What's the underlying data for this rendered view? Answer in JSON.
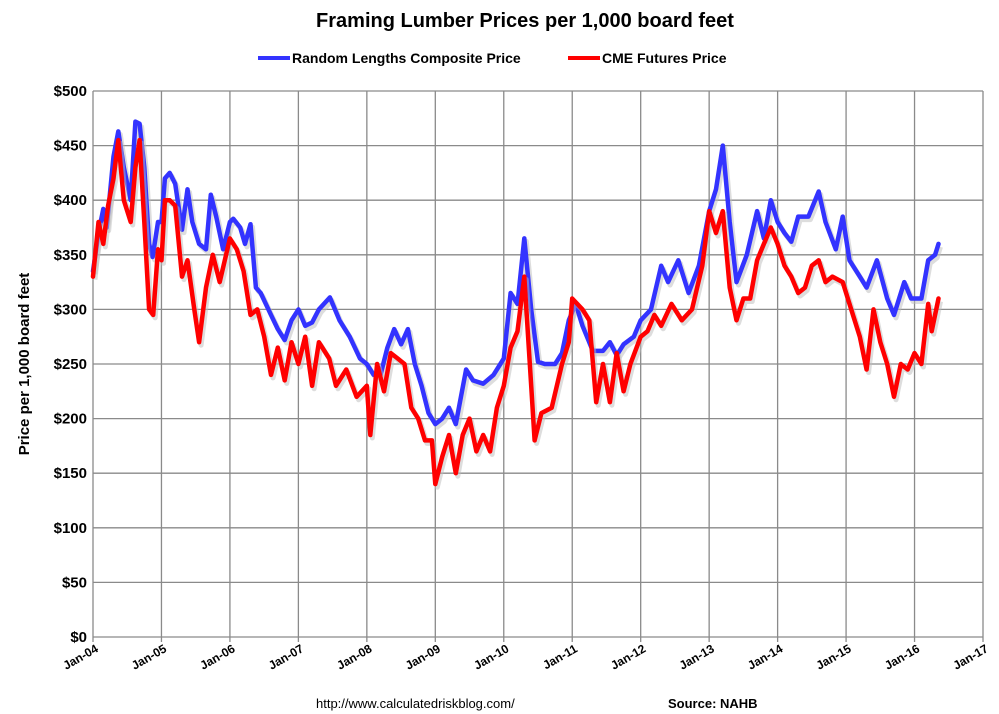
{
  "chart_data": {
    "type": "line",
    "title": "Framing Lumber Prices per 1,000 board feet",
    "xlabel": "",
    "ylabel": "Price per 1,000 board feet",
    "ylim": [
      0,
      500
    ],
    "xlim": [
      "Jan-04",
      "Jan-17"
    ],
    "yticks": [
      "$0",
      "$50",
      "$100",
      "$150",
      "$200",
      "$250",
      "$300",
      "$350",
      "$400",
      "$450",
      "$500"
    ],
    "xticks": [
      "Jan-04",
      "Jan-05",
      "Jan-06",
      "Jan-07",
      "Jan-08",
      "Jan-09",
      "Jan-10",
      "Jan-11",
      "Jan-12",
      "Jan-13",
      "Jan-14",
      "Jan-15",
      "Jan-16",
      "Jan-17"
    ],
    "grid": true,
    "legend_position": "top",
    "series": [
      {
        "name": "Random Lengths Composite Price",
        "color": "#3333ff",
        "points": [
          [
            2004.0,
            335
          ],
          [
            2004.08,
            370
          ],
          [
            2004.15,
            392
          ],
          [
            2004.2,
            375
          ],
          [
            2004.3,
            440
          ],
          [
            2004.37,
            463
          ],
          [
            2004.45,
            430
          ],
          [
            2004.55,
            400
          ],
          [
            2004.62,
            472
          ],
          [
            2004.68,
            470
          ],
          [
            2004.75,
            430
          ],
          [
            2004.82,
            360
          ],
          [
            2004.87,
            348
          ],
          [
            2004.95,
            380
          ],
          [
            2005.0,
            380
          ],
          [
            2005.05,
            420
          ],
          [
            2005.12,
            425
          ],
          [
            2005.2,
            415
          ],
          [
            2005.3,
            373
          ],
          [
            2005.38,
            410
          ],
          [
            2005.45,
            380
          ],
          [
            2005.55,
            360
          ],
          [
            2005.65,
            355
          ],
          [
            2005.72,
            405
          ],
          [
            2005.8,
            385
          ],
          [
            2005.9,
            355
          ],
          [
            2006.0,
            380
          ],
          [
            2006.05,
            383
          ],
          [
            2006.15,
            375
          ],
          [
            2006.22,
            360
          ],
          [
            2006.3,
            378
          ],
          [
            2006.38,
            320
          ],
          [
            2006.45,
            315
          ],
          [
            2006.6,
            295
          ],
          [
            2006.7,
            282
          ],
          [
            2006.8,
            272
          ],
          [
            2006.9,
            290
          ],
          [
            2007.0,
            300
          ],
          [
            2007.1,
            285
          ],
          [
            2007.2,
            288
          ],
          [
            2007.3,
            300
          ],
          [
            2007.46,
            311
          ],
          [
            2007.6,
            290
          ],
          [
            2007.75,
            275
          ],
          [
            2007.9,
            255
          ],
          [
            2008.0,
            250
          ],
          [
            2008.1,
            240
          ],
          [
            2008.2,
            240
          ],
          [
            2008.3,
            265
          ],
          [
            2008.4,
            282
          ],
          [
            2008.5,
            268
          ],
          [
            2008.6,
            282
          ],
          [
            2008.7,
            250
          ],
          [
            2008.8,
            230
          ],
          [
            2008.9,
            205
          ],
          [
            2009.0,
            195
          ],
          [
            2009.1,
            200
          ],
          [
            2009.2,
            210
          ],
          [
            2009.3,
            195
          ],
          [
            2009.45,
            245
          ],
          [
            2009.55,
            235
          ],
          [
            2009.7,
            232
          ],
          [
            2009.85,
            240
          ],
          [
            2010.0,
            255
          ],
          [
            2010.1,
            315
          ],
          [
            2010.2,
            305
          ],
          [
            2010.3,
            365
          ],
          [
            2010.4,
            300
          ],
          [
            2010.5,
            252
          ],
          [
            2010.6,
            250
          ],
          [
            2010.75,
            250
          ],
          [
            2010.85,
            260
          ],
          [
            2010.95,
            290
          ],
          [
            2011.05,
            305
          ],
          [
            2011.15,
            285
          ],
          [
            2011.3,
            262
          ],
          [
            2011.45,
            262
          ],
          [
            2011.55,
            270
          ],
          [
            2011.65,
            258
          ],
          [
            2011.75,
            268
          ],
          [
            2011.9,
            275
          ],
          [
            2012.0,
            290
          ],
          [
            2012.15,
            300
          ],
          [
            2012.3,
            340
          ],
          [
            2012.4,
            325
          ],
          [
            2012.55,
            345
          ],
          [
            2012.7,
            315
          ],
          [
            2012.85,
            340
          ],
          [
            2013.0,
            390
          ],
          [
            2013.1,
            410
          ],
          [
            2013.2,
            450
          ],
          [
            2013.3,
            380
          ],
          [
            2013.4,
            325
          ],
          [
            2013.55,
            350
          ],
          [
            2013.7,
            390
          ],
          [
            2013.8,
            365
          ],
          [
            2013.9,
            400
          ],
          [
            2014.0,
            380
          ],
          [
            2014.1,
            370
          ],
          [
            2014.2,
            362
          ],
          [
            2014.3,
            385
          ],
          [
            2014.45,
            385
          ],
          [
            2014.6,
            408
          ],
          [
            2014.7,
            380
          ],
          [
            2014.85,
            355
          ],
          [
            2014.95,
            385
          ],
          [
            2015.05,
            345
          ],
          [
            2015.2,
            330
          ],
          [
            2015.3,
            320
          ],
          [
            2015.45,
            345
          ],
          [
            2015.6,
            310
          ],
          [
            2015.7,
            295
          ],
          [
            2015.85,
            325
          ],
          [
            2015.95,
            310
          ],
          [
            2016.1,
            310
          ],
          [
            2016.2,
            345
          ],
          [
            2016.3,
            350
          ],
          [
            2016.35,
            360
          ]
        ]
      },
      {
        "name": "CME Futures Price",
        "color": "#ff0000",
        "points": [
          [
            2004.0,
            330
          ],
          [
            2004.08,
            380
          ],
          [
            2004.15,
            360
          ],
          [
            2004.22,
            395
          ],
          [
            2004.3,
            420
          ],
          [
            2004.37,
            455
          ],
          [
            2004.45,
            400
          ],
          [
            2004.55,
            380
          ],
          [
            2004.62,
            430
          ],
          [
            2004.68,
            455
          ],
          [
            2004.75,
            380
          ],
          [
            2004.82,
            300
          ],
          [
            2004.88,
            295
          ],
          [
            2004.95,
            355
          ],
          [
            2005.0,
            345
          ],
          [
            2005.05,
            400
          ],
          [
            2005.12,
            400
          ],
          [
            2005.2,
            395
          ],
          [
            2005.3,
            330
          ],
          [
            2005.38,
            345
          ],
          [
            2005.48,
            300
          ],
          [
            2005.55,
            270
          ],
          [
            2005.65,
            320
          ],
          [
            2005.75,
            350
          ],
          [
            2005.85,
            325
          ],
          [
            2006.0,
            365
          ],
          [
            2006.1,
            355
          ],
          [
            2006.2,
            335
          ],
          [
            2006.3,
            295
          ],
          [
            2006.4,
            300
          ],
          [
            2006.5,
            275
          ],
          [
            2006.6,
            240
          ],
          [
            2006.7,
            265
          ],
          [
            2006.8,
            235
          ],
          [
            2006.9,
            270
          ],
          [
            2007.0,
            250
          ],
          [
            2007.1,
            275
          ],
          [
            2007.2,
            230
          ],
          [
            2007.3,
            270
          ],
          [
            2007.45,
            255
          ],
          [
            2007.55,
            230
          ],
          [
            2007.7,
            245
          ],
          [
            2007.85,
            220
          ],
          [
            2008.0,
            230
          ],
          [
            2008.05,
            185
          ],
          [
            2008.15,
            250
          ],
          [
            2008.25,
            225
          ],
          [
            2008.35,
            260
          ],
          [
            2008.45,
            255
          ],
          [
            2008.55,
            250
          ],
          [
            2008.65,
            210
          ],
          [
            2008.75,
            200
          ],
          [
            2008.85,
            180
          ],
          [
            2008.95,
            180
          ],
          [
            2009.0,
            140
          ],
          [
            2009.1,
            165
          ],
          [
            2009.2,
            185
          ],
          [
            2009.3,
            150
          ],
          [
            2009.4,
            185
          ],
          [
            2009.5,
            200
          ],
          [
            2009.6,
            170
          ],
          [
            2009.7,
            185
          ],
          [
            2009.8,
            170
          ],
          [
            2009.9,
            210
          ],
          [
            2010.0,
            230
          ],
          [
            2010.1,
            265
          ],
          [
            2010.2,
            280
          ],
          [
            2010.3,
            330
          ],
          [
            2010.4,
            230
          ],
          [
            2010.45,
            180
          ],
          [
            2010.55,
            205
          ],
          [
            2010.7,
            210
          ],
          [
            2010.85,
            250
          ],
          [
            2010.95,
            270
          ],
          [
            2011.0,
            310
          ],
          [
            2011.15,
            300
          ],
          [
            2011.25,
            290
          ],
          [
            2011.35,
            215
          ],
          [
            2011.45,
            250
          ],
          [
            2011.55,
            215
          ],
          [
            2011.65,
            260
          ],
          [
            2011.75,
            225
          ],
          [
            2011.85,
            250
          ],
          [
            2012.0,
            275
          ],
          [
            2012.1,
            280
          ],
          [
            2012.2,
            295
          ],
          [
            2012.3,
            285
          ],
          [
            2012.45,
            305
          ],
          [
            2012.6,
            290
          ],
          [
            2012.75,
            300
          ],
          [
            2012.9,
            340
          ],
          [
            2013.0,
            390
          ],
          [
            2013.1,
            370
          ],
          [
            2013.2,
            390
          ],
          [
            2013.3,
            320
          ],
          [
            2013.4,
            290
          ],
          [
            2013.5,
            310
          ],
          [
            2013.6,
            310
          ],
          [
            2013.7,
            345
          ],
          [
            2013.8,
            360
          ],
          [
            2013.9,
            375
          ],
          [
            2014.0,
            360
          ],
          [
            2014.1,
            340
          ],
          [
            2014.2,
            330
          ],
          [
            2014.3,
            315
          ],
          [
            2014.4,
            320
          ],
          [
            2014.5,
            340
          ],
          [
            2014.6,
            345
          ],
          [
            2014.7,
            325
          ],
          [
            2014.8,
            330
          ],
          [
            2014.95,
            325
          ],
          [
            2015.05,
            305
          ],
          [
            2015.2,
            275
          ],
          [
            2015.3,
            245
          ],
          [
            2015.4,
            300
          ],
          [
            2015.5,
            270
          ],
          [
            2015.6,
            250
          ],
          [
            2015.7,
            220
          ],
          [
            2015.8,
            250
          ],
          [
            2015.9,
            245
          ],
          [
            2016.0,
            260
          ],
          [
            2016.1,
            250
          ],
          [
            2016.2,
            305
          ],
          [
            2016.25,
            280
          ],
          [
            2016.35,
            310
          ]
        ]
      }
    ]
  },
  "footer": {
    "url": "http://www.calculatedriskblog.com/",
    "source": "Source: NAHB"
  }
}
